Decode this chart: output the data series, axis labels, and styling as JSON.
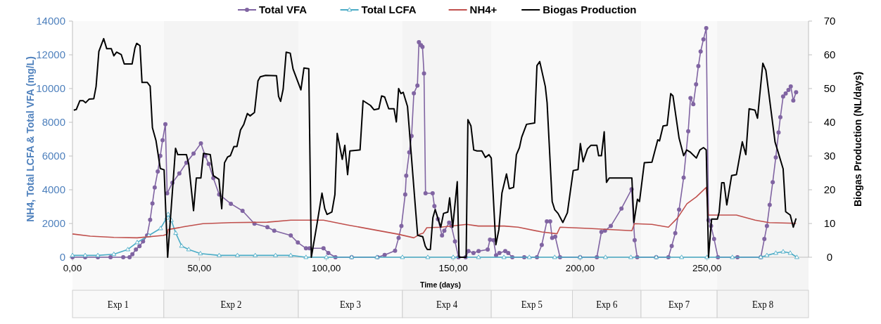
{
  "chart_data": {
    "type": "line",
    "xlabel": "Time (days)",
    "ylabel": "NH4, Total LCFA  &  Total VFA (mg/L)",
    "y2label": "Biogas Production (NL/days)",
    "xlim": [
      0,
      290
    ],
    "xticks": [
      {
        "value": 0,
        "label": "0,00"
      },
      {
        "value": 50,
        "label": "50,00"
      },
      {
        "value": 100,
        "label": "100,00"
      },
      {
        "value": 150,
        "label": "150,00"
      },
      {
        "value": 200,
        "label": "200,00"
      },
      {
        "value": 250,
        "label": "250,00"
      }
    ],
    "ylim": [
      0,
      14000
    ],
    "yticks": [
      0,
      2000,
      4000,
      6000,
      8000,
      10000,
      12000,
      14000
    ],
    "y2lim": [
      0,
      70
    ],
    "y2ticks": [
      0,
      10,
      20,
      30,
      40,
      50,
      60,
      70
    ],
    "grid": false,
    "legend": "top",
    "bands": [
      {
        "axis": "x",
        "from": 0,
        "to": 36,
        "label": "Exp 1"
      },
      {
        "axis": "x",
        "from": 36,
        "to": 89,
        "label": "Exp 2"
      },
      {
        "axis": "x",
        "from": 89,
        "to": 130,
        "label": "Exp 3"
      },
      {
        "axis": "x",
        "from": 130,
        "to": 165,
        "label": "Exp 4"
      },
      {
        "axis": "x",
        "from": 165,
        "to": 197,
        "label": "Exp 5"
      },
      {
        "axis": "x",
        "from": 197,
        "to": 224,
        "label": "Exp 6"
      },
      {
        "axis": "x",
        "from": 224,
        "to": 254,
        "label": "Exp 7"
      },
      {
        "axis": "x",
        "from": 254,
        "to": 290,
        "label": "Exp 8"
      }
    ],
    "series": [
      {
        "name": "Total VFA",
        "color": "#8064a2",
        "marker": "circle",
        "x": [
          0,
          5,
          10,
          15,
          20,
          22.5,
          23.6,
          25,
          26.4,
          27.8,
          29.4,
          30.6,
          31.5,
          32.4,
          33.6,
          34.6,
          35.5,
          36.6,
          37.3,
          39.4,
          42.1,
          44.9,
          47.7,
          50.6,
          52.3,
          53.7,
          55.5,
          57.8,
          62.4,
          67,
          71.7,
          76.8,
          79.5,
          86,
          88.8,
          92,
          93.4,
          98.9,
          100.8,
          103.6,
          110,
          120.2,
          123,
          127.1,
          128.5,
          129.6,
          131.1,
          131.5,
          132.7,
          133.6,
          134.5,
          135.9,
          136.5,
          137.3,
          137.9,
          138.5,
          139.1,
          141.9,
          142.6,
          144,
          145.6,
          146.5,
          148.4,
          149.3,
          150.7,
          152.1,
          154.9,
          156,
          158,
          160,
          163.6,
          164.5,
          165.9,
          166.9,
          168.2,
          170.5,
          171.7,
          173.3,
          178,
          183,
          184.9,
          186.9,
          188.2,
          189,
          190.2,
          192.1,
          200,
          206.6,
          208.4,
          209.8,
          212.1,
          216.3,
          220.3,
          221.5,
          222.5,
          230,
          234.8,
          236.1,
          237.5,
          239,
          240.8,
          242.6,
          243.5,
          244.6,
          245.7,
          246.6,
          247.5,
          248.6,
          249.7,
          250.6,
          251.6,
          252.8,
          254.3,
          262,
          271.2,
          272.6,
          273.6,
          274.7,
          275.9,
          277.1,
          278.2,
          278.9,
          280,
          281,
          282.1,
          283,
          284,
          285.1
        ],
        "values": [
          0,
          0,
          0,
          0,
          0,
          0,
          180,
          460,
          660,
          940,
          1290,
          2220,
          3190,
          4140,
          5080,
          6010,
          6940,
          7890,
          3790,
          4420,
          4970,
          5600,
          6150,
          6750,
          6010,
          5530,
          4690,
          3720,
          3170,
          2750,
          1990,
          1780,
          1570,
          1290,
          870,
          530,
          530,
          530,
          250,
          0,
          0,
          0,
          140,
          390,
          1150,
          1850,
          3720,
          4830,
          6220,
          7190,
          9720,
          10180,
          12750,
          12570,
          12470,
          10900,
          3790,
          3790,
          3030,
          2260,
          1290,
          1570,
          2050,
          1850,
          940,
          0,
          0,
          360,
          250,
          360,
          460,
          1040,
          1010,
          110,
          250,
          360,
          250,
          0,
          0,
          0,
          730,
          2120,
          2120,
          1150,
          1220,
          0,
          0,
          0,
          1500,
          1570,
          1850,
          2890,
          4030,
          1010,
          0,
          0,
          0,
          670,
          1430,
          2820,
          4720,
          7470,
          9440,
          9070,
          10250,
          11330,
          12200,
          12920,
          13580,
          2200,
          1850,
          1080,
          0,
          0,
          0,
          1080,
          1850,
          3100,
          4450,
          5920,
          7400,
          8300,
          9530,
          9710,
          9920,
          10130,
          9290,
          9780
        ]
      },
      {
        "name": "Total LCFA",
        "color": "#4bacc6",
        "marker": "triangle",
        "x": [
          0,
          5,
          10,
          16.3,
          21.8,
          25.5,
          30.1,
          34.7,
          37.1,
          37.7,
          38.9,
          40.7,
          43,
          45.8,
          50.4,
          57.8,
          65,
          72,
          80,
          86,
          92,
          100,
          110,
          120,
          130,
          140,
          150,
          160,
          170,
          180,
          190,
          200,
          210,
          220,
          230,
          240,
          250,
          260,
          271.2,
          273.6,
          277.1,
          280,
          282.8,
          285.4
        ],
        "values": [
          110,
          110,
          110,
          180,
          460,
          880,
          1290,
          1710,
          2330,
          2540,
          2200,
          1430,
          670,
          460,
          220,
          110,
          110,
          110,
          110,
          110,
          0,
          0,
          0,
          0,
          0,
          0,
          0,
          0,
          0,
          0,
          0,
          0,
          0,
          0,
          0,
          0,
          0,
          0,
          0,
          110,
          250,
          330,
          250,
          0
        ]
      },
      {
        "name": "NH4+",
        "color": "#c0504d",
        "marker": "none",
        "x": [
          0,
          7,
          16.3,
          25.5,
          35.7,
          37.3,
          37.7,
          44,
          51.4,
          62.4,
          76.8,
          86,
          98.9,
          108.2,
          118.3,
          128.5,
          134.5,
          136.8,
          138.2,
          139.6,
          145.1,
          155.3,
          159.9,
          170.1,
          175.6,
          184.9,
          190.9,
          192.1,
          203.4,
          220.4,
          221.4,
          228.3,
          234.8,
          238.4,
          242.1,
          245.8,
          249.7,
          250.5,
          261.6,
          269,
          274.5,
          285.1
        ],
        "values": [
          1380,
          1250,
          1180,
          1150,
          1290,
          1360,
          1640,
          1810,
          1990,
          2050,
          2080,
          2200,
          2200,
          1920,
          1640,
          1360,
          1150,
          1360,
          1430,
          1750,
          1780,
          1950,
          1850,
          1850,
          1780,
          1500,
          1390,
          1780,
          1710,
          1570,
          1990,
          1950,
          1780,
          2330,
          3170,
          3580,
          4140,
          2500,
          2500,
          2200,
          2050,
          2010
        ]
      },
      {
        "name": "Biogas Production",
        "color": "#000000",
        "marker": "none",
        "axis": "y2",
        "x": [
          0.5,
          1.5,
          2.9,
          4.2,
          5.2,
          6.6,
          8.4,
          9.3,
          10.4,
          12.3,
          13.5,
          15.3,
          16.3,
          17.4,
          19.2,
          20.4,
          23.5,
          24.6,
          25.3,
          26.6,
          27.4,
          29.5,
          30.6,
          31.5,
          32.9,
          34.6,
          36.1,
          37.5,
          40.6,
          41.5,
          44.9,
          45.8,
          47.7,
          48.8,
          50.6,
          51.6,
          54.3,
          55.5,
          57.7,
          58.8,
          59.9,
          61.1,
          62.2,
          63.6,
          64.8,
          66.2,
          67.5,
          68.9,
          70,
          71.7,
          73.1,
          74,
          76.1,
          80.4,
          81.2,
          82,
          83,
          84.2,
          85.8,
          86.9,
          90,
          91.2,
          93.1,
          94.1,
          96.2,
          98.3,
          99.4,
          100.3,
          102.2,
          103.4,
          104.3,
          106.3,
          107.3,
          108.4,
          109.3,
          113.3,
          114.5,
          117.4,
          118.8,
          120.7,
          121.8,
          123,
          124.6,
          126.7,
          127.6,
          128.5,
          129.4,
          130.3,
          132,
          135,
          136,
          138,
          139,
          139.8,
          141,
          142,
          142.9,
          145.1,
          146.2,
          147.9,
          148.6,
          149.8,
          151.6,
          152.3,
          155.1,
          155.8,
          157,
          158.1,
          159.4,
          161.3,
          162.7,
          164.1,
          165,
          166.8,
          168,
          169.2,
          171,
          172.1,
          173.8,
          174.9,
          176.1,
          177,
          178.9,
          182.1,
          183,
          184.1,
          186.3,
          187,
          189,
          190,
          191.3,
          193.2,
          195,
          197.3,
          199.2,
          200.1,
          201.2,
          202.9,
          204.3,
          206.6,
          207.3,
          208.4,
          209.5,
          210.4,
          211.5,
          220.4,
          221.2,
          222.6,
          223.4,
          225.3,
          228.3,
          230.6,
          231.3,
          232.7,
          234.3,
          235.7,
          236.6,
          239,
          240.8,
          242,
          243.5,
          245.8,
          247.2,
          248.6,
          249.7,
          250.6,
          251.8,
          254.1,
          254.8,
          255.8,
          256.7,
          257.8,
          259.7,
          261.6,
          263.9,
          265.3,
          266.6,
          268.9,
          269.9,
          272,
          273.2,
          276.8,
          280,
          281,
          282.8,
          284,
          285.1
        ],
        "values": [
          43.6,
          43.8,
          46.4,
          46.4,
          45.8,
          46.9,
          47,
          50.6,
          61,
          64.8,
          61.8,
          61.8,
          59.7,
          60.8,
          60.1,
          57.3,
          57.3,
          62,
          63.4,
          62.7,
          51.8,
          51.8,
          50.7,
          38.4,
          34.6,
          26.3,
          25.9,
          0,
          32.3,
          30.4,
          30.4,
          27.6,
          13.8,
          23.5,
          23.5,
          30.8,
          30.4,
          24.2,
          23.1,
          14.4,
          28,
          29.7,
          30.1,
          32.8,
          32.8,
          37.7,
          39.4,
          42.6,
          41.9,
          42.9,
          52.3,
          53.5,
          53.9,
          53.8,
          47.7,
          46.2,
          49.8,
          60.8,
          60.5,
          55.8,
          49.6,
          56.1,
          55.9,
          0,
          9.2,
          19,
          14.4,
          12.7,
          13.4,
          18.6,
          36.7,
          29,
          33.2,
          24.5,
          31.5,
          31.8,
          46.4,
          45,
          43.7,
          44,
          47.8,
          47.5,
          44,
          44,
          40.1,
          50,
          48.5,
          48.9,
          44.7,
          15.8,
          6.5,
          6.1,
          3.3,
          2.3,
          2.3,
          11.7,
          14.1,
          8.9,
          13,
          13.4,
          17.6,
          8.9,
          22.4,
          0,
          0,
          40.8,
          38.9,
          31.8,
          31.5,
          31.5,
          29.6,
          30.4,
          29.4,
          3.7,
          8.2,
          19,
          24.7,
          20.3,
          20.7,
          30.4,
          32.5,
          35.6,
          39.4,
          39.8,
          56.8,
          58,
          50.6,
          45.8,
          16.5,
          14.1,
          13,
          10.3,
          13.2,
          25.7,
          26,
          33.7,
          28.3,
          32.1,
          33.2,
          33.2,
          30.1,
          30.1,
          37.2,
          22.2,
          23.5,
          23.5,
          10.3,
          17.2,
          16.5,
          28,
          28.2,
          34.8,
          34.5,
          38.9,
          39.1,
          48.5,
          47.8,
          35.3,
          30.1,
          31.8,
          31.1,
          29.4,
          31.8,
          32.5,
          31.8,
          0,
          11.3,
          11.3,
          13.4,
          22.1,
          22.1,
          15.5,
          24.2,
          24.5,
          34.2,
          30.4,
          44,
          43.6,
          41.2,
          57.5,
          55.4,
          34.2,
          26.2,
          13.5,
          12.5,
          8.9,
          11.5
        ]
      }
    ]
  }
}
